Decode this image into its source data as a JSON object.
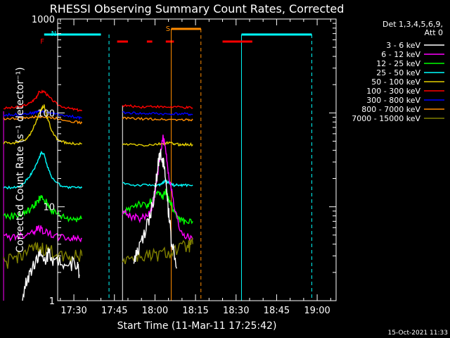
{
  "chart_data": {
    "type": "line",
    "title": "RHESSI Observing Summary Count Rates, Corrected",
    "xlabel": "Start Time (11-Mar-11 17:25:42)",
    "ylabel": "Corrected Count Rate (s⁻¹ detector⁻¹)",
    "yscale": "log",
    "ylim": [
      1,
      1000
    ],
    "xlim_minutes_from_1725": [
      -1,
      102
    ],
    "x_ticks": [
      "17:30",
      "17:45",
      "18:00",
      "18:15",
      "18:30",
      "18:45",
      "19:00"
    ],
    "y_ticks": [
      "1",
      "10",
      "100",
      "1000"
    ],
    "legend": {
      "placement": "right",
      "header": [
        "Det 1,3,4,5,6,9,",
        "Att 0"
      ],
      "entries": [
        {
          "label": "3 - 6 keV",
          "color": "#ffffff"
        },
        {
          "label": "6 - 12 keV",
          "color": "#ff00ff"
        },
        {
          "label": "12 - 25 keV",
          "color": "#00ff00"
        },
        {
          "label": "25 - 50 keV",
          "color": "#00ffff"
        },
        {
          "label": "50 - 100 keV",
          "color": "#e6d000"
        },
        {
          "label": "100 - 300 keV",
          "color": "#ff0000"
        },
        {
          "label": "300 - 800 keV",
          "color": "#0000ff"
        },
        {
          "label": "800 - 7000 keV",
          "color": "#ff8c00"
        },
        {
          "label": "7000 - 15000 keV",
          "color": "#808000"
        }
      ]
    },
    "markers": {
      "night_label": "N",
      "flare_label": "F",
      "saa_label": "S"
    },
    "series": [
      {
        "name": "100 - 300 keV",
        "color": "#ff0000",
        "segments": [
          {
            "x": [
              -21,
              -17,
              -14,
              -11,
              -9,
              -8,
              -6,
              -4,
              -1,
              3,
              6,
              8
            ],
            "y": [
              112,
              114,
              118,
              128,
              145,
              165,
              170,
              145,
              122,
              112,
              108,
              105
            ]
          },
          {
            "x": [
              23,
              26,
              30,
              34,
              38,
              42,
              46,
              49
            ],
            "y": [
              120,
              118,
              116,
              118,
              115,
              116,
              114,
              113
            ]
          }
        ]
      },
      {
        "name": "300 - 800 keV",
        "color": "#0000ff",
        "segments": [
          {
            "x": [
              -21,
              -17,
              -13,
              -10,
              -8,
              -5,
              -2,
              2,
              6,
              8
            ],
            "y": [
              95,
              96,
              98,
              100,
              104,
              102,
              98,
              94,
              90,
              88
            ]
          },
          {
            "x": [
              23,
              27,
              31,
              35,
              39,
              43,
              47,
              49
            ],
            "y": [
              100,
              100,
              98,
              99,
              97,
              98,
              97,
              96
            ]
          }
        ]
      },
      {
        "name": "800 - 7000 keV",
        "color": "#ff8c00",
        "segments": [
          {
            "x": [
              -21,
              -17,
              -13,
              -10,
              -8,
              -5,
              -2,
              2,
              6,
              8
            ],
            "y": [
              87,
              87,
              88,
              90,
              92,
              90,
              88,
              84,
              80,
              78
            ]
          },
          {
            "x": [
              23,
              27,
              31,
              35,
              39,
              43,
              47,
              49
            ],
            "y": [
              88,
              87,
              86,
              86,
              85,
              85,
              84,
              84
            ]
          }
        ]
      },
      {
        "name": "50 - 100 keV",
        "color": "#e6d000",
        "segments": [
          {
            "x": [
              -21,
              -17,
              -13,
              -11,
              -9,
              -7,
              -6,
              -5,
              -3,
              -1,
              2,
              5,
              8
            ],
            "y": [
              48,
              48,
              52,
              60,
              80,
              110,
              120,
              90,
              62,
              52,
              48,
              47,
              47
            ]
          },
          {
            "x": [
              23,
              27,
              31,
              35,
              38,
              40,
              42,
              44,
              46,
              49
            ],
            "y": [
              46,
              46,
              45,
              46,
              47,
              48,
              47,
              46,
              46,
              46
            ]
          }
        ]
      },
      {
        "name": "25 - 50 keV",
        "color": "#00ffff",
        "segments": [
          {
            "x": [
              -21,
              -17,
              -14,
              -12,
              -10,
              -8,
              -7,
              -6,
              -5,
              -3,
              0,
              3,
              6,
              8
            ],
            "y": [
              16,
              16,
              17,
              20,
              24,
              32,
              38,
              36,
              28,
              20,
              17,
              16,
              16,
              16
            ]
          },
          {
            "x": [
              23,
              27,
              31,
              35,
              37,
              38,
              39,
              40,
              42,
              44,
              46,
              49
            ],
            "y": [
              18,
              17,
              17,
              17,
              17,
              18,
              19,
              18,
              17,
              17,
              17,
              17
            ]
          }
        ]
      },
      {
        "name": "12 - 25 keV",
        "color": "#00ff00",
        "segments": [
          {
            "x": [
              -21,
              -17,
              -14,
              -12,
              -10,
              -8,
              -7,
              -5,
              -3,
              0,
              3,
              6,
              8
            ],
            "y": [
              8,
              8,
              8.5,
              9,
              10,
              12,
              12.5,
              11,
              9,
              8,
              7.5,
              7.5,
              7.5
            ]
          },
          {
            "x": [
              23,
              26,
              29,
              32,
              34,
              36,
              38,
              39,
              40,
              42,
              44,
              46,
              49
            ],
            "y": [
              8,
              10,
              11,
              10,
              12,
              14,
              13,
              15,
              12,
              9,
              7.5,
              7,
              7
            ]
          }
        ]
      },
      {
        "name": "6 - 12 keV",
        "color": "#ff00ff",
        "segments": [
          {
            "x": [
              -21,
              -17,
              -14,
              -10,
              -8,
              -6,
              -3,
              0,
              3,
              6,
              8
            ],
            "y": [
              4.8,
              4.8,
              5,
              5.5,
              6,
              5.5,
              5,
              4.8,
              4.6,
              4.6,
              4.6
            ]
          },
          {
            "x": [
              23,
              26,
              29,
              32,
              34,
              35,
              36,
              37,
              38,
              39,
              40,
              42,
              44,
              46,
              49
            ],
            "y": [
              9,
              8,
              7.5,
              8,
              10,
              14,
              22,
              36,
              55,
              40,
              22,
              10,
              6,
              5,
              4.5
            ]
          }
        ]
      },
      {
        "name": "7000 - 15000 keV",
        "color": "#808000",
        "segments": [
          {
            "x": [
              -21,
              -17,
              -14,
              -10,
              -7,
              -4,
              -1,
              3,
              6,
              8
            ],
            "y": [
              2.5,
              2.8,
              3.2,
              3.5,
              3.6,
              3.4,
              3.2,
              3,
              3,
              3
            ]
          },
          {
            "x": [
              23,
              27,
              31,
              35,
              39,
              43,
              47,
              49
            ],
            "y": [
              2.8,
              2.9,
              3,
              3,
              3.2,
              3.5,
              3.8,
              4
            ]
          }
        ]
      },
      {
        "name": "3 - 6 keV",
        "color": "#ffffff",
        "segments": [
          {
            "x": [
              -14,
              -12,
              -10,
              -8,
              -6,
              -4,
              -2,
              0,
              3,
              6,
              7
            ],
            "y": [
              1.05,
              1.8,
              2.4,
              3.2,
              2.6,
              3.4,
              2.5,
              2.8,
              2.4,
              2.6,
              1.9
            ]
          },
          {
            "x": [
              27,
              29,
              31,
              33,
              35,
              36,
              37,
              38,
              39,
              40,
              41,
              43
            ],
            "y": [
              2.5,
              3.5,
              5,
              7.5,
              14,
              25,
              40,
              30,
              18,
              9,
              4.5,
              2.2
            ]
          }
        ]
      }
    ]
  },
  "footer": {
    "date": "15-Oct-2021 11:33"
  }
}
